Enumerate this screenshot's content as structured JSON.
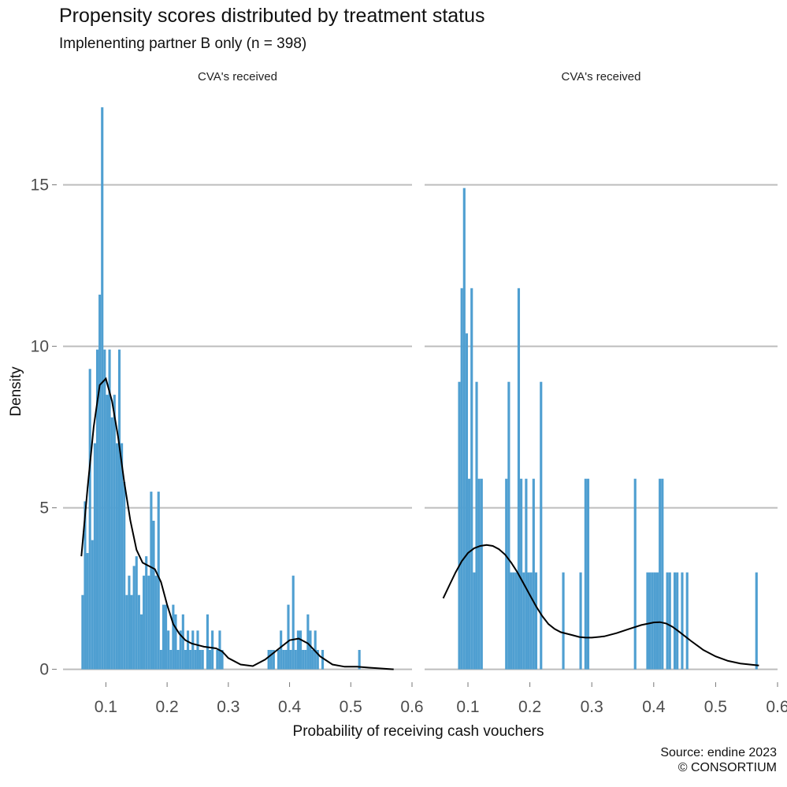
{
  "title": "Propensity scores distributed by treatment status",
  "subtitle": "Implenenting partner B only (n = 398)",
  "caption": {
    "line1": "Source: endine 2023",
    "line2": "© CONSORTIUM"
  },
  "colors": {
    "bar": "#4f9fd1",
    "density_line": "#000000",
    "grid": "#bdbdbd",
    "tick_text": "#4d4d4d"
  },
  "chart_data": {
    "type": "bar",
    "subtype": "faceted histogram with density curve",
    "xlabel": "Probability of receiving cash vouchers",
    "ylabel": "Density",
    "xlim": [
      0.03,
      0.6
    ],
    "ylim": [
      -0.4,
      17.6
    ],
    "x_ticks": [
      0.1,
      0.2,
      0.3,
      0.4,
      0.5,
      0.6
    ],
    "x_tick_labels": [
      "0.1",
      "0.2",
      "0.3",
      "0.4",
      "0.5",
      "0.6"
    ],
    "y_ticks": [
      0,
      5,
      10,
      15
    ],
    "y_tick_labels": [
      "0",
      "5",
      "10",
      "15"
    ],
    "grid": "horizontal major lines",
    "bin_width": 0.004,
    "facets": [
      {
        "strip_label": "CVA's received",
        "bars": [
          [
            0.062,
            2.3
          ],
          [
            0.066,
            5.2
          ],
          [
            0.07,
            3.6
          ],
          [
            0.074,
            9.3
          ],
          [
            0.078,
            4.0
          ],
          [
            0.082,
            7.0
          ],
          [
            0.086,
            9.9
          ],
          [
            0.09,
            11.6
          ],
          [
            0.094,
            17.4
          ],
          [
            0.098,
            9.9
          ],
          [
            0.102,
            8.5
          ],
          [
            0.106,
            9.9
          ],
          [
            0.11,
            7.8
          ],
          [
            0.114,
            8.5
          ],
          [
            0.118,
            7.0
          ],
          [
            0.122,
            9.9
          ],
          [
            0.126,
            7.0
          ],
          [
            0.13,
            5.8
          ],
          [
            0.134,
            2.3
          ],
          [
            0.138,
            2.9
          ],
          [
            0.142,
            2.3
          ],
          [
            0.146,
            3.2
          ],
          [
            0.15,
            3.5
          ],
          [
            0.154,
            2.3
          ],
          [
            0.158,
            1.7
          ],
          [
            0.162,
            2.9
          ],
          [
            0.166,
            3.5
          ],
          [
            0.17,
            2.9
          ],
          [
            0.174,
            5.5
          ],
          [
            0.178,
            4.6
          ],
          [
            0.182,
            2.9
          ],
          [
            0.186,
            5.5
          ],
          [
            0.19,
            0.6
          ],
          [
            0.194,
            2.0
          ],
          [
            0.198,
            2.0
          ],
          [
            0.202,
            1.2
          ],
          [
            0.206,
            0.6
          ],
          [
            0.21,
            2.0
          ],
          [
            0.214,
            1.7
          ],
          [
            0.218,
            0.6
          ],
          [
            0.222,
            1.2
          ],
          [
            0.226,
            1.7
          ],
          [
            0.23,
            0.6
          ],
          [
            0.234,
            1.2
          ],
          [
            0.238,
            0.6
          ],
          [
            0.242,
            1.2
          ],
          [
            0.246,
            0.6
          ],
          [
            0.25,
            1.2
          ],
          [
            0.254,
            0.6
          ],
          [
            0.258,
            0.6
          ],
          [
            0.266,
            1.7
          ],
          [
            0.27,
            0.6
          ],
          [
            0.274,
            1.2
          ],
          [
            0.282,
            0.6
          ],
          [
            0.286,
            1.2
          ],
          [
            0.29,
            0.6
          ],
          [
            0.366,
            0.6
          ],
          [
            0.37,
            0.6
          ],
          [
            0.374,
            0.6
          ],
          [
            0.382,
            0.6
          ],
          [
            0.386,
            1.2
          ],
          [
            0.39,
            0.6
          ],
          [
            0.394,
            0.6
          ],
          [
            0.398,
            2.0
          ],
          [
            0.402,
            0.6
          ],
          [
            0.406,
            2.9
          ],
          [
            0.41,
            0.6
          ],
          [
            0.414,
            1.2
          ],
          [
            0.418,
            1.2
          ],
          [
            0.422,
            0.6
          ],
          [
            0.426,
            0.6
          ],
          [
            0.43,
            1.7
          ],
          [
            0.434,
            1.2
          ],
          [
            0.438,
            0.6
          ],
          [
            0.442,
            1.2
          ],
          [
            0.446,
            0.6
          ],
          [
            0.454,
            0.6
          ],
          [
            0.514,
            0.6
          ]
        ],
        "density": [
          [
            0.06,
            3.5
          ],
          [
            0.07,
            5.6
          ],
          [
            0.08,
            7.5
          ],
          [
            0.09,
            8.8
          ],
          [
            0.1,
            9.0
          ],
          [
            0.11,
            8.3
          ],
          [
            0.12,
            7.2
          ],
          [
            0.13,
            5.8
          ],
          [
            0.14,
            4.6
          ],
          [
            0.15,
            3.7
          ],
          [
            0.16,
            3.3
          ],
          [
            0.17,
            3.2
          ],
          [
            0.18,
            3.1
          ],
          [
            0.19,
            2.7
          ],
          [
            0.2,
            2.0
          ],
          [
            0.21,
            1.4
          ],
          [
            0.22,
            1.1
          ],
          [
            0.23,
            0.9
          ],
          [
            0.24,
            0.8
          ],
          [
            0.26,
            0.7
          ],
          [
            0.28,
            0.65
          ],
          [
            0.29,
            0.55
          ],
          [
            0.3,
            0.35
          ],
          [
            0.32,
            0.15
          ],
          [
            0.34,
            0.1
          ],
          [
            0.36,
            0.3
          ],
          [
            0.38,
            0.6
          ],
          [
            0.4,
            0.9
          ],
          [
            0.415,
            0.95
          ],
          [
            0.43,
            0.8
          ],
          [
            0.45,
            0.4
          ],
          [
            0.47,
            0.15
          ],
          [
            0.49,
            0.08
          ],
          [
            0.51,
            0.08
          ],
          [
            0.53,
            0.05
          ],
          [
            0.57,
            0.0
          ]
        ]
      },
      {
        "strip_label": "CVA's received",
        "bars": [
          [
            0.086,
            8.9
          ],
          [
            0.09,
            11.8
          ],
          [
            0.094,
            14.9
          ],
          [
            0.098,
            10.4
          ],
          [
            0.102,
            5.9
          ],
          [
            0.106,
            11.8
          ],
          [
            0.11,
            3.0
          ],
          [
            0.114,
            8.9
          ],
          [
            0.118,
            5.9
          ],
          [
            0.122,
            5.9
          ],
          [
            0.162,
            5.9
          ],
          [
            0.166,
            8.9
          ],
          [
            0.17,
            3.0
          ],
          [
            0.174,
            3.0
          ],
          [
            0.178,
            3.0
          ],
          [
            0.182,
            11.8
          ],
          [
            0.186,
            5.9
          ],
          [
            0.19,
            3.0
          ],
          [
            0.194,
            5.9
          ],
          [
            0.198,
            3.0
          ],
          [
            0.202,
            3.0
          ],
          [
            0.206,
            5.9
          ],
          [
            0.21,
            3.0
          ],
          [
            0.218,
            8.9
          ],
          [
            0.254,
            3.0
          ],
          [
            0.282,
            3.0
          ],
          [
            0.29,
            5.9
          ],
          [
            0.294,
            5.9
          ],
          [
            0.37,
            5.9
          ],
          [
            0.39,
            3.0
          ],
          [
            0.394,
            3.0
          ],
          [
            0.398,
            3.0
          ],
          [
            0.402,
            3.0
          ],
          [
            0.406,
            3.0
          ],
          [
            0.41,
            5.9
          ],
          [
            0.414,
            5.9
          ],
          [
            0.422,
            3.0
          ],
          [
            0.426,
            3.0
          ],
          [
            0.434,
            3.0
          ],
          [
            0.438,
            3.0
          ],
          [
            0.446,
            3.0
          ],
          [
            0.454,
            3.0
          ],
          [
            0.566,
            3.0
          ]
        ],
        "density": [
          [
            0.06,
            2.2
          ],
          [
            0.07,
            2.6
          ],
          [
            0.08,
            3.0
          ],
          [
            0.09,
            3.35
          ],
          [
            0.1,
            3.6
          ],
          [
            0.11,
            3.75
          ],
          [
            0.12,
            3.82
          ],
          [
            0.13,
            3.85
          ],
          [
            0.14,
            3.82
          ],
          [
            0.15,
            3.72
          ],
          [
            0.16,
            3.55
          ],
          [
            0.17,
            3.3
          ],
          [
            0.18,
            3.0
          ],
          [
            0.19,
            2.65
          ],
          [
            0.2,
            2.3
          ],
          [
            0.21,
            1.95
          ],
          [
            0.22,
            1.65
          ],
          [
            0.23,
            1.4
          ],
          [
            0.24,
            1.25
          ],
          [
            0.25,
            1.15
          ],
          [
            0.26,
            1.1
          ],
          [
            0.27,
            1.05
          ],
          [
            0.28,
            1.0
          ],
          [
            0.29,
            0.98
          ],
          [
            0.3,
            0.98
          ],
          [
            0.32,
            1.02
          ],
          [
            0.34,
            1.12
          ],
          [
            0.36,
            1.25
          ],
          [
            0.38,
            1.37
          ],
          [
            0.4,
            1.45
          ],
          [
            0.41,
            1.46
          ],
          [
            0.42,
            1.42
          ],
          [
            0.43,
            1.32
          ],
          [
            0.44,
            1.18
          ],
          [
            0.46,
            0.88
          ],
          [
            0.48,
            0.6
          ],
          [
            0.5,
            0.4
          ],
          [
            0.52,
            0.26
          ],
          [
            0.54,
            0.18
          ],
          [
            0.57,
            0.12
          ]
        ]
      }
    ]
  }
}
